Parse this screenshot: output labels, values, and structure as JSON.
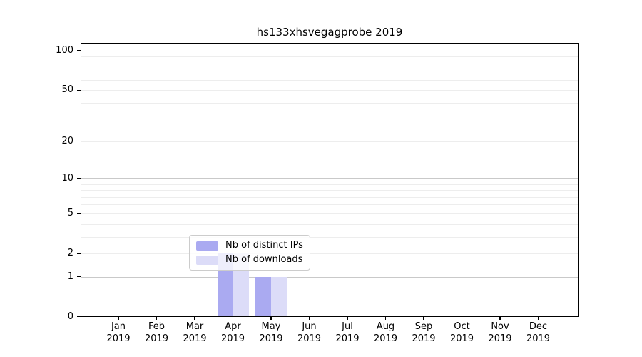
{
  "chart_data": {
    "type": "bar",
    "title": "hs133xhsvegagprobe 2019",
    "x_axis": {
      "categories": [
        {
          "month": "Jan",
          "year": "2019"
        },
        {
          "month": "Feb",
          "year": "2019"
        },
        {
          "month": "Mar",
          "year": "2019"
        },
        {
          "month": "Apr",
          "year": "2019"
        },
        {
          "month": "May",
          "year": "2019"
        },
        {
          "month": "Jun",
          "year": "2019"
        },
        {
          "month": "Jul",
          "year": "2019"
        },
        {
          "month": "Aug",
          "year": "2019"
        },
        {
          "month": "Sep",
          "year": "2019"
        },
        {
          "month": "Oct",
          "year": "2019"
        },
        {
          "month": "Nov",
          "year": "2019"
        },
        {
          "month": "Dec",
          "year": "2019"
        }
      ]
    },
    "y_axis": {
      "scale": "log1p",
      "ticks": [
        0,
        1,
        2,
        5,
        10,
        20,
        50,
        100
      ],
      "minor_gridlines": [
        2,
        3,
        4,
        5,
        6,
        7,
        8,
        9,
        20,
        30,
        40,
        50,
        60,
        70,
        80,
        90
      ],
      "major_gridlines": [
        1,
        10,
        100
      ],
      "ylim": [
        0,
        115
      ]
    },
    "series": [
      {
        "name": "Nb of distinct IPs",
        "color": "#aaaaf1",
        "values": [
          0,
          0,
          0,
          2,
          1,
          0,
          0,
          0,
          0,
          0,
          0,
          0
        ]
      },
      {
        "name": "Nb of downloads",
        "color": "#dcdcf8",
        "values": [
          0,
          0,
          0,
          2,
          1,
          0,
          0,
          0,
          0,
          0,
          0,
          0
        ]
      }
    ],
    "legend_position": "lower center-left",
    "grid": true,
    "colors": {
      "spine": "#000000",
      "minor_grid": "#ededed",
      "major_grid": "#c9c9c9",
      "background": "#ffffff"
    }
  }
}
